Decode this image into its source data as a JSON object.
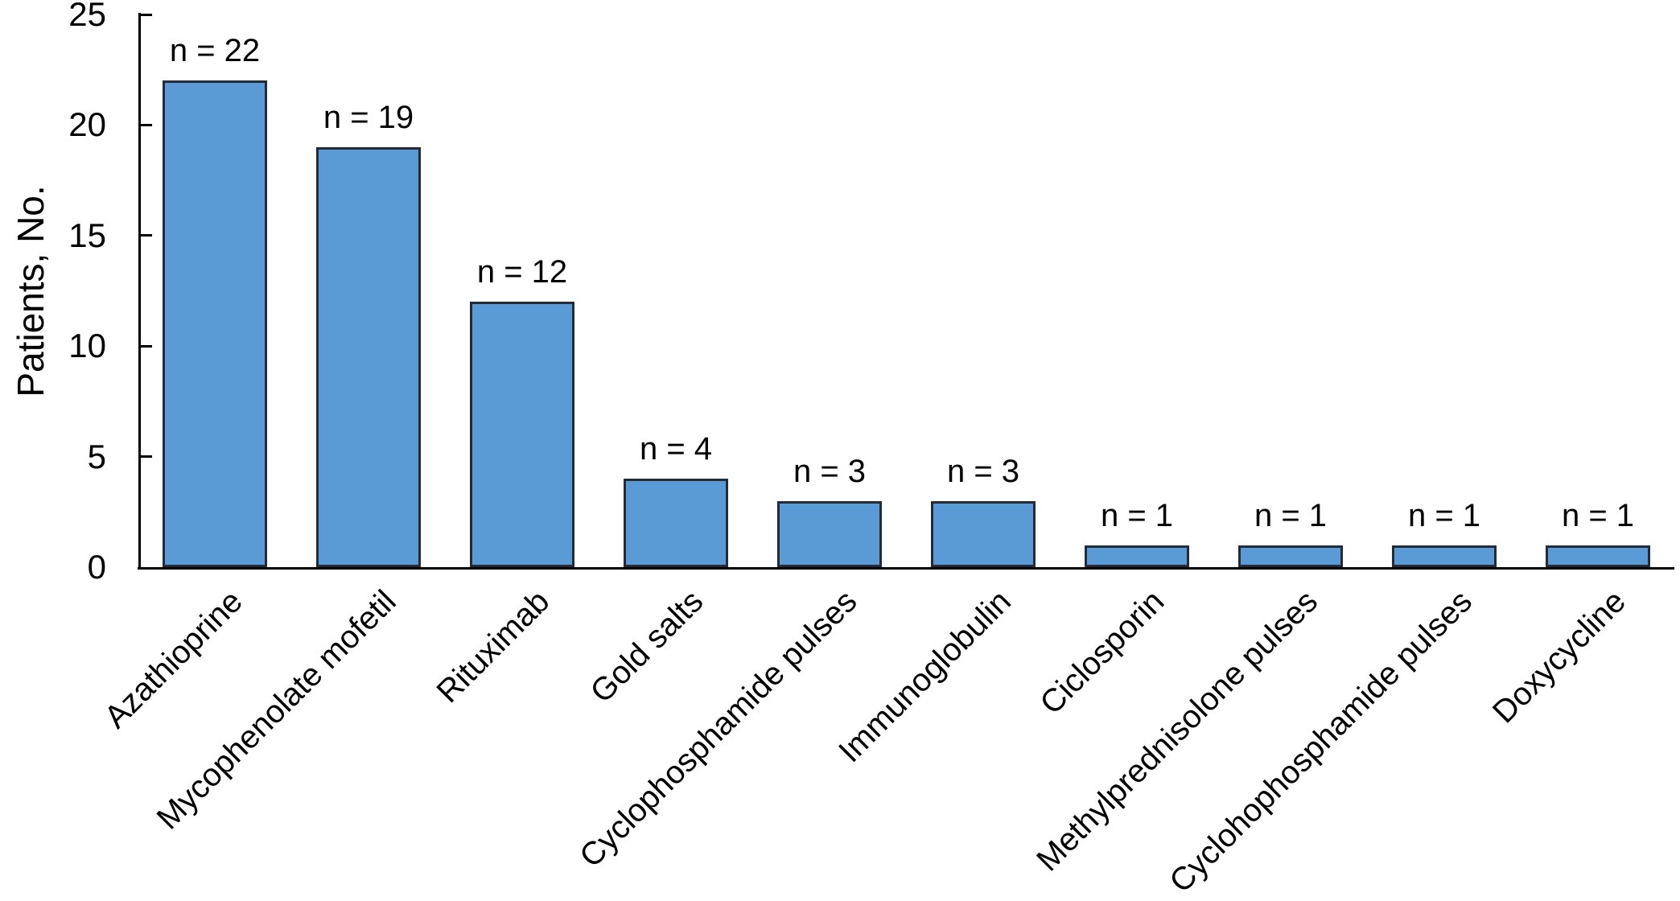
{
  "chart_data": {
    "type": "bar",
    "title": "",
    "xlabel": "",
    "ylabel": "Patients, No.",
    "ylim": [
      0,
      25
    ],
    "yticks": [
      0,
      5,
      10,
      15,
      20,
      25
    ],
    "grid": false,
    "legend": false,
    "bar_color": "#5B9BD5",
    "bar_border_color": "#242a36",
    "axis_color": "#000000",
    "categories": [
      "Azathioprine",
      "Mycophenolate mofetil",
      "Rituximab",
      "Gold salts",
      "Cyclophosphamide pulses",
      "Immunoglobulin",
      "Ciclosporin",
      "Methylprednisolone pulses",
      "Cyclohophosphamide pulses",
      "Doxycycline"
    ],
    "values": [
      22,
      19,
      12,
      4,
      3,
      3,
      1,
      1,
      1,
      1
    ],
    "bar_labels": [
      "n = 22",
      "n = 19",
      "n = 12",
      "n = 4",
      "n = 3",
      "n = 3",
      "n = 1",
      "n = 1",
      "n = 1",
      "n = 1"
    ]
  }
}
